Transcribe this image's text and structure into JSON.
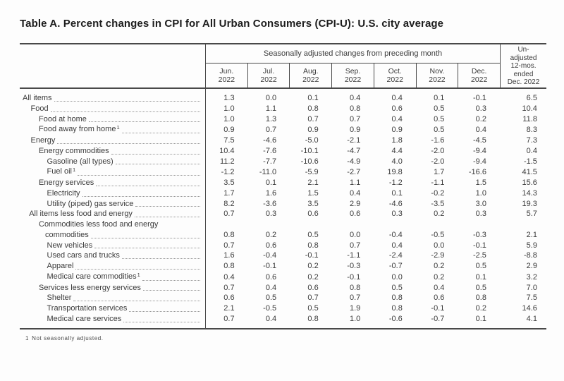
{
  "page": {
    "title": "Table A. Percent changes in CPI for All Urban Consumers (CPI-U): U.S. city average"
  },
  "table": {
    "column_group_header": "Seasonally adjusted changes from preceding month",
    "unadjusted_header_lines": [
      "Un-",
      "adjusted",
      "12-mos.",
      "ended",
      "Dec. 2022"
    ],
    "month_columns": [
      {
        "month": "Jun.",
        "year": "2022"
      },
      {
        "month": "Jul.",
        "year": "2022"
      },
      {
        "month": "Aug.",
        "year": "2022"
      },
      {
        "month": "Sep.",
        "year": "2022"
      },
      {
        "month": "Oct.",
        "year": "2022"
      },
      {
        "month": "Nov.",
        "year": "2022"
      },
      {
        "month": "Dec.",
        "year": "2022"
      }
    ],
    "rows": [
      {
        "label": "All items",
        "indent": 0,
        "values": [
          "1.3",
          "0.0",
          "0.1",
          "0.4",
          "0.4",
          "0.1",
          "-0.1",
          "6.5"
        ]
      },
      {
        "label": "Food",
        "indent": 1,
        "values": [
          "1.0",
          "1.1",
          "0.8",
          "0.8",
          "0.6",
          "0.5",
          "0.3",
          "10.4"
        ]
      },
      {
        "label": "Food at home",
        "indent": 2,
        "values": [
          "1.0",
          "1.3",
          "0.7",
          "0.7",
          "0.4",
          "0.5",
          "0.2",
          "11.8"
        ]
      },
      {
        "label": "Food away from home",
        "sup": "1",
        "indent": 2,
        "values": [
          "0.9",
          "0.7",
          "0.9",
          "0.9",
          "0.9",
          "0.5",
          "0.4",
          "8.3"
        ]
      },
      {
        "label": "Energy",
        "indent": 1,
        "values": [
          "7.5",
          "-4.6",
          "-5.0",
          "-2.1",
          "1.8",
          "-1.6",
          "-4.5",
          "7.3"
        ]
      },
      {
        "label": "Energy commodities",
        "indent": 2,
        "values": [
          "10.4",
          "-7.6",
          "-10.1",
          "-4.7",
          "4.4",
          "-2.0",
          "-9.4",
          "0.4"
        ]
      },
      {
        "label": "Gasoline (all types)",
        "indent": 3,
        "values": [
          "11.2",
          "-7.7",
          "-10.6",
          "-4.9",
          "4.0",
          "-2.0",
          "-9.4",
          "-1.5"
        ]
      },
      {
        "label": "Fuel oil",
        "sup": "1",
        "indent": 3,
        "values": [
          "-1.2",
          "-11.0",
          "-5.9",
          "-2.7",
          "19.8",
          "1.7",
          "-16.6",
          "41.5"
        ]
      },
      {
        "label": "Energy services",
        "indent": 2,
        "values": [
          "3.5",
          "0.1",
          "2.1",
          "1.1",
          "-1.2",
          "-1.1",
          "1.5",
          "15.6"
        ]
      },
      {
        "label": "Electricity",
        "indent": 3,
        "values": [
          "1.7",
          "1.6",
          "1.5",
          "0.4",
          "0.1",
          "-0.2",
          "1.0",
          "14.3"
        ]
      },
      {
        "label": "Utility (piped) gas service",
        "indent": 3,
        "values": [
          "8.2",
          "-3.6",
          "3.5",
          "2.9",
          "-4.6",
          "-3.5",
          "3.0",
          "19.3"
        ]
      },
      {
        "label": "All items less food and energy",
        "indent": 0.8,
        "values": [
          "0.7",
          "0.3",
          "0.6",
          "0.6",
          "0.3",
          "0.2",
          "0.3",
          "5.7"
        ]
      },
      {
        "label": "Commodities less food and energy",
        "label2": "commodities",
        "indent": 2,
        "values": [
          "0.8",
          "0.2",
          "0.5",
          "0.0",
          "-0.4",
          "-0.5",
          "-0.3",
          "2.1"
        ]
      },
      {
        "label": "New vehicles",
        "indent": 3,
        "values": [
          "0.7",
          "0.6",
          "0.8",
          "0.7",
          "0.4",
          "0.0",
          "-0.1",
          "5.9"
        ]
      },
      {
        "label": "Used cars and trucks",
        "indent": 3,
        "values": [
          "1.6",
          "-0.4",
          "-0.1",
          "-1.1",
          "-2.4",
          "-2.9",
          "-2.5",
          "-8.8"
        ]
      },
      {
        "label": "Apparel",
        "indent": 3,
        "values": [
          "0.8",
          "-0.1",
          "0.2",
          "-0.3",
          "-0.7",
          "0.2",
          "0.5",
          "2.9"
        ]
      },
      {
        "label": "Medical care commodities",
        "sup": "1",
        "indent": 3,
        "values": [
          "0.4",
          "0.6",
          "0.2",
          "-0.1",
          "0.0",
          "0.2",
          "0.1",
          "3.2"
        ]
      },
      {
        "label": "Services less energy services",
        "indent": 2,
        "values": [
          "0.7",
          "0.4",
          "0.6",
          "0.8",
          "0.5",
          "0.4",
          "0.5",
          "7.0"
        ]
      },
      {
        "label": "Shelter",
        "indent": 3,
        "values": [
          "0.6",
          "0.5",
          "0.7",
          "0.7",
          "0.8",
          "0.6",
          "0.8",
          "7.5"
        ]
      },
      {
        "label": "Transportation services",
        "indent": 3,
        "values": [
          "2.1",
          "-0.5",
          "0.5",
          "1.9",
          "0.8",
          "-0.1",
          "0.2",
          "14.6"
        ]
      },
      {
        "label": "Medical care services",
        "indent": 3,
        "values": [
          "0.7",
          "0.4",
          "0.8",
          "1.0",
          "-0.6",
          "-0.7",
          "0.1",
          "4.1"
        ]
      }
    ],
    "footnote": {
      "marker": "1",
      "text": "Not seasonally adjusted."
    }
  }
}
